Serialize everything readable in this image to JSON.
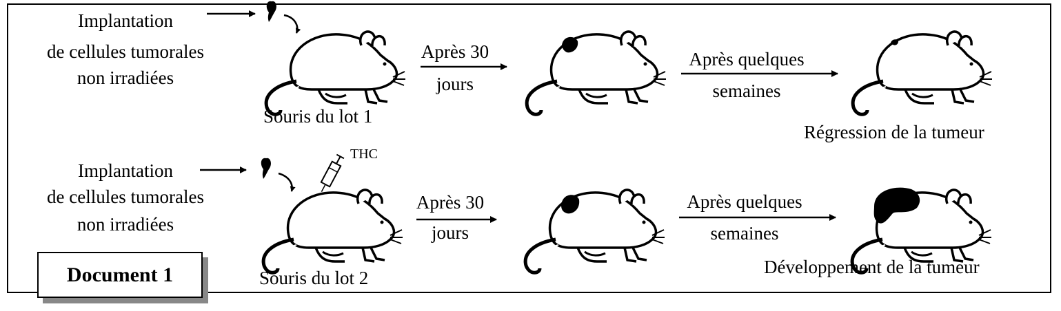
{
  "row1": {
    "implant_lines": [
      "Implantation",
      "de cellules tumorales",
      "non irradiées"
    ],
    "mouse_label": "Souris du lot 1",
    "step1_top": "Après 30",
    "step1_bottom": "jours",
    "step2_top": "Après quelques",
    "step2_bottom": "semaines",
    "result": "Régression de la tumeur"
  },
  "row2": {
    "implant_lines": [
      "Implantation",
      "de cellules tumorales",
      "non irradiées"
    ],
    "injection_label": "THC",
    "mouse_label": "Souris du lot 2",
    "step1_top": "Après 30",
    "step1_bottom": "jours",
    "step2_top": "Après quelques",
    "step2_bottom": "semaines",
    "result": "Développement de la tumeur"
  },
  "document_label": "Document 1"
}
